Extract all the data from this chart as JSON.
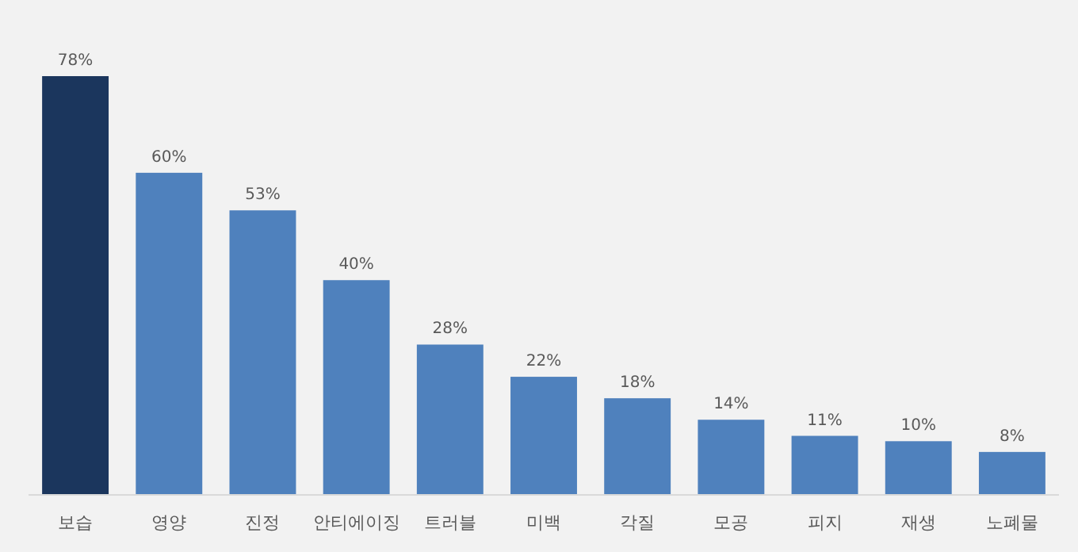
{
  "chart_data": {
    "type": "bar",
    "categories": [
      "보습",
      "영양",
      "진정",
      "안티에이징",
      "트러블",
      "미백",
      "각질",
      "모공",
      "피지",
      "재생",
      "노폐물"
    ],
    "values": [
      78,
      60,
      53,
      40,
      28,
      22,
      18,
      14,
      11,
      10,
      8
    ],
    "colors": [
      "#1b365d",
      "#4f81bd",
      "#4f81bd",
      "#4f81bd",
      "#4f81bd",
      "#4f81bd",
      "#4f81bd",
      "#4f81bd",
      "#4f81bd",
      "#4f81bd",
      "#4f81bd"
    ],
    "value_labels": [
      "78%",
      "60%",
      "53%",
      "40%",
      "28%",
      "22%",
      "18%",
      "14%",
      "11%",
      "10%",
      "8%"
    ]
  }
}
